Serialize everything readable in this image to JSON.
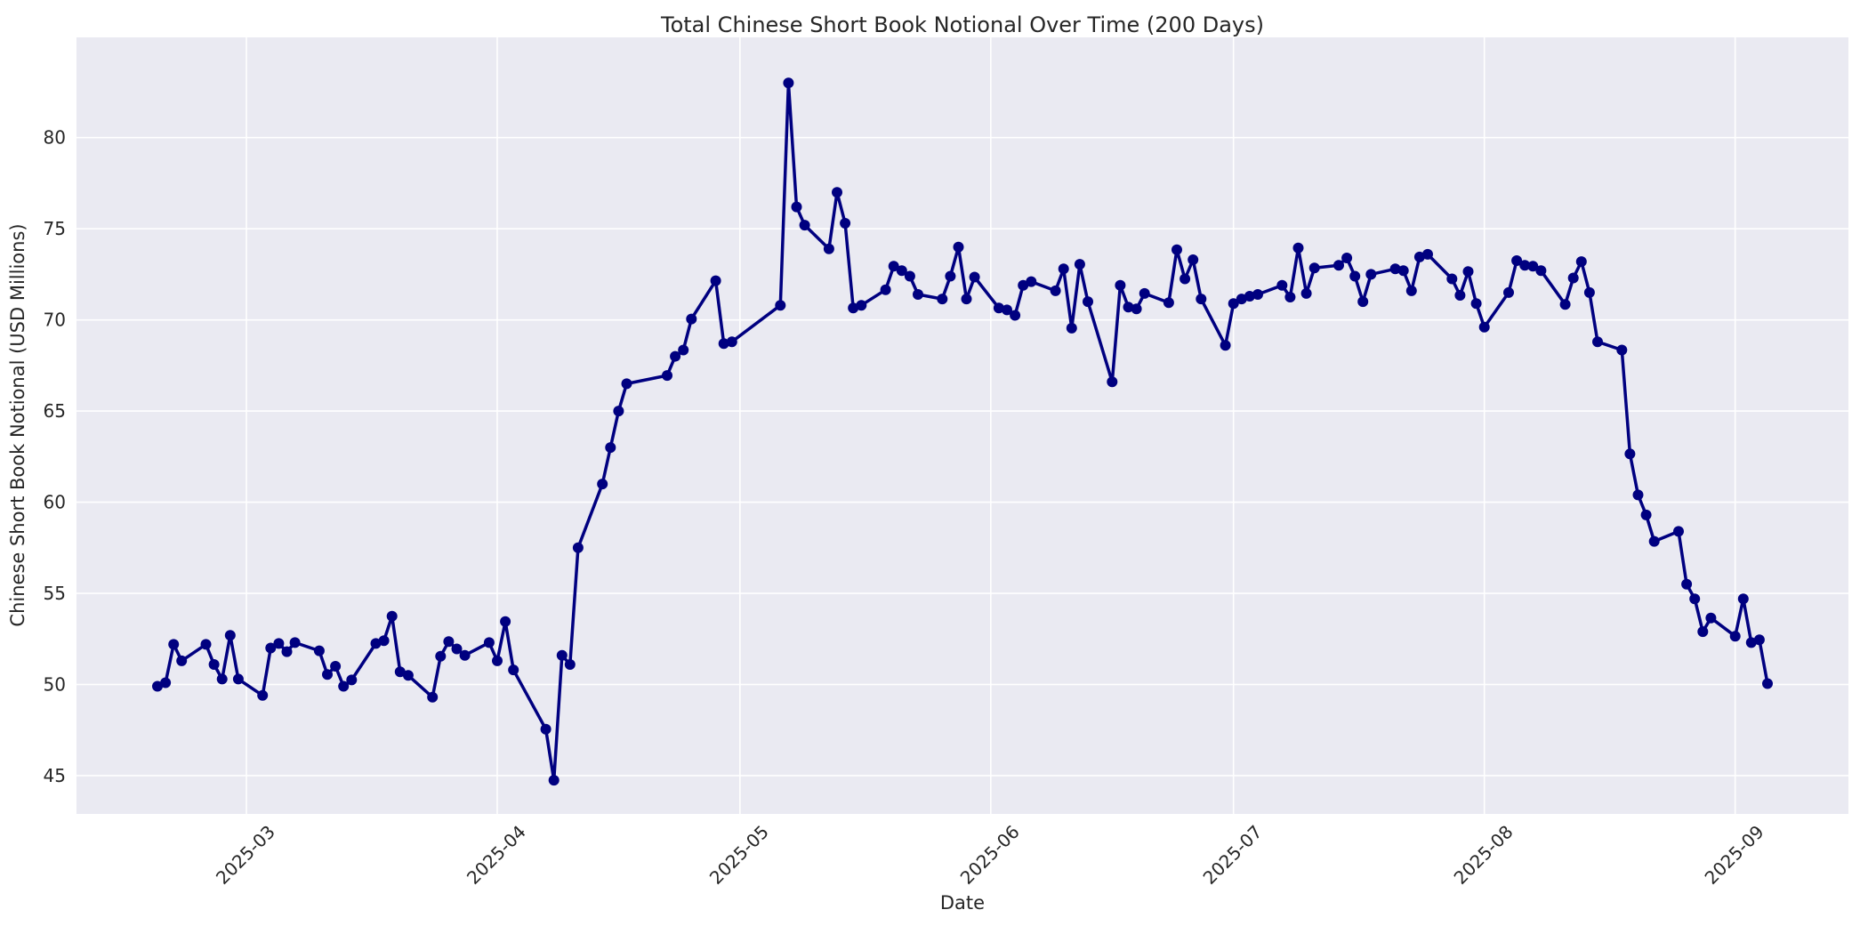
{
  "chart_data": {
    "type": "line",
    "title": "Total Chinese Short Book Notional Over Time (200 Days)",
    "xlabel": "Date",
    "ylabel": "Chinese Short Book Notional (USD Millions)",
    "x_tick_labels": [
      "2025-03",
      "2025-04",
      "2025-05",
      "2025-06",
      "2025-07",
      "2025-08",
      "2025-09"
    ],
    "y_tick_values": [
      45,
      50,
      55,
      60,
      65,
      70,
      75,
      80
    ],
    "xlim": [
      "2025-02-08",
      "2025-09-15"
    ],
    "ylim": [
      42.9,
      85.5
    ],
    "grid": "on",
    "legend": "none",
    "x_tick_rotation_deg": 45,
    "line_color": "#000080",
    "marker": "circle",
    "plot_background_color": "#EAEAF2",
    "grid_color": "#FFFFFF",
    "text_color": "#262626",
    "dates": [
      "2025-02-18",
      "2025-02-19",
      "2025-02-20",
      "2025-02-21",
      "2025-02-24",
      "2025-02-25",
      "2025-02-26",
      "2025-02-27",
      "2025-02-28",
      "2025-03-03",
      "2025-03-04",
      "2025-03-05",
      "2025-03-06",
      "2025-03-07",
      "2025-03-10",
      "2025-03-11",
      "2025-03-12",
      "2025-03-13",
      "2025-03-14",
      "2025-03-17",
      "2025-03-18",
      "2025-03-19",
      "2025-03-20",
      "2025-03-21",
      "2025-03-24",
      "2025-03-25",
      "2025-03-26",
      "2025-03-27",
      "2025-03-28",
      "2025-03-31",
      "2025-04-01",
      "2025-04-02",
      "2025-04-03",
      "2025-04-07",
      "2025-04-08",
      "2025-04-09",
      "2025-04-10",
      "2025-04-11",
      "2025-04-14",
      "2025-04-15",
      "2025-04-16",
      "2025-04-17",
      "2025-04-22",
      "2025-04-23",
      "2025-04-24",
      "2025-04-25",
      "2025-04-28",
      "2025-04-29",
      "2025-04-30",
      "2025-05-06",
      "2025-05-07",
      "2025-05-08",
      "2025-05-09",
      "2025-05-12",
      "2025-05-13",
      "2025-05-14",
      "2025-05-15",
      "2025-05-16",
      "2025-05-19",
      "2025-05-20",
      "2025-05-21",
      "2025-05-22",
      "2025-05-23",
      "2025-05-26",
      "2025-05-27",
      "2025-05-28",
      "2025-05-29",
      "2025-05-30",
      "2025-06-02",
      "2025-06-03",
      "2025-06-04",
      "2025-06-05",
      "2025-06-06",
      "2025-06-09",
      "2025-06-10",
      "2025-06-11",
      "2025-06-12",
      "2025-06-13",
      "2025-06-16",
      "2025-06-17",
      "2025-06-18",
      "2025-06-19",
      "2025-06-20",
      "2025-06-23",
      "2025-06-24",
      "2025-06-25",
      "2025-06-26",
      "2025-06-27",
      "2025-06-30",
      "2025-07-01",
      "2025-07-02",
      "2025-07-03",
      "2025-07-04",
      "2025-07-07",
      "2025-07-08",
      "2025-07-09",
      "2025-07-10",
      "2025-07-11",
      "2025-07-14",
      "2025-07-15",
      "2025-07-16",
      "2025-07-17",
      "2025-07-18",
      "2025-07-21",
      "2025-07-22",
      "2025-07-23",
      "2025-07-24",
      "2025-07-25",
      "2025-07-28",
      "2025-07-29",
      "2025-07-30",
      "2025-07-31",
      "2025-08-01",
      "2025-08-04",
      "2025-08-05",
      "2025-08-06",
      "2025-08-07",
      "2025-08-08",
      "2025-08-11",
      "2025-08-12",
      "2025-08-13",
      "2025-08-14",
      "2025-08-15",
      "2025-08-18",
      "2025-08-19",
      "2025-08-20",
      "2025-08-21",
      "2025-08-22",
      "2025-08-25",
      "2025-08-26",
      "2025-08-27",
      "2025-08-28",
      "2025-08-29",
      "2025-09-01",
      "2025-09-02",
      "2025-09-03",
      "2025-09-04",
      "2025-09-05"
    ],
    "values": [
      49.9,
      50.1,
      52.2,
      51.3,
      52.2,
      51.1,
      50.3,
      52.7,
      50.3,
      49.4,
      52.0,
      52.25,
      51.8,
      52.3,
      51.85,
      50.55,
      51.0,
      49.9,
      50.25,
      52.25,
      52.4,
      53.75,
      50.7,
      50.5,
      49.3,
      51.55,
      52.35,
      51.95,
      51.6,
      52.3,
      51.3,
      53.45,
      50.8,
      47.55,
      44.75,
      51.6,
      51.1,
      57.5,
      61.0,
      63.0,
      65.0,
      66.5,
      66.95,
      68.0,
      68.35,
      70.05,
      72.15,
      68.7,
      68.8,
      70.8,
      83.0,
      76.2,
      75.2,
      73.9,
      77.0,
      75.3,
      70.65,
      70.8,
      71.65,
      72.95,
      72.7,
      72.4,
      71.4,
      71.15,
      72.4,
      74.0,
      71.15,
      72.35,
      70.65,
      70.55,
      70.25,
      71.9,
      72.1,
      71.6,
      72.8,
      69.55,
      73.05,
      71.0,
      66.6,
      71.9,
      70.7,
      70.6,
      71.45,
      70.95,
      73.85,
      72.25,
      73.3,
      71.15,
      68.6,
      70.9,
      71.15,
      71.3,
      71.4,
      71.9,
      71.25,
      73.95,
      71.45,
      72.85,
      73.0,
      73.4,
      72.4,
      71.0,
      72.5,
      72.8,
      72.7,
      71.6,
      73.45,
      73.6,
      72.25,
      71.35,
      72.65,
      70.9,
      69.6,
      71.5,
      73.25,
      73.0,
      72.95,
      72.7,
      70.85,
      72.3,
      73.2,
      71.5,
      68.8,
      68.35,
      62.65,
      60.4,
      59.3,
      57.85,
      58.4,
      55.5,
      54.7,
      52.9,
      53.65,
      52.65,
      54.7,
      52.3,
      52.45,
      50.05
    ]
  }
}
